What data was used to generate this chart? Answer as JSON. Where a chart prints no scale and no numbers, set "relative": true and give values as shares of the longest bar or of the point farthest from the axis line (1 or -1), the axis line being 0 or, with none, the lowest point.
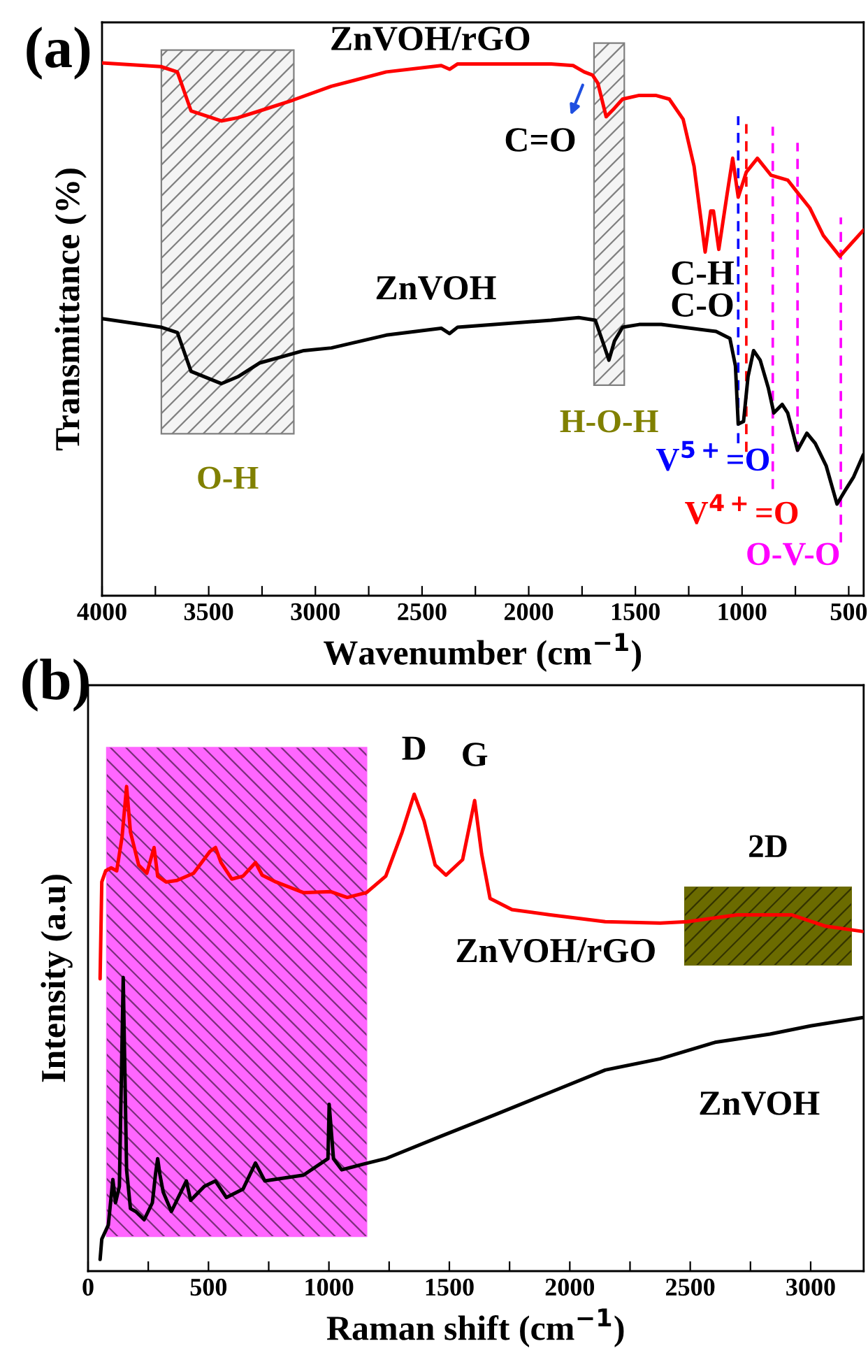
{
  "chart_data": [
    {
      "type": "line",
      "relative": true,
      "tick_labels": "x",
      "xlabel": "Wavenumber (cm$^{−1}$)",
      "ylabel": "Transmittance (%)",
      "xlim": [
        4000,
        430
      ],
      "xticks": [
        4000,
        {
          "value": 3750,
          "label": null
        },
        3500,
        {
          "value": 3250,
          "label": null
        },
        3000,
        {
          "value": 2750,
          "label": null
        },
        2500,
        {
          "value": 2250,
          "label": null
        },
        2000,
        {
          "value": 1750,
          "label": null
        },
        1500,
        {
          "value": 1250,
          "label": null
        },
        1000,
        {
          "value": 750,
          "label": null
        },
        500
      ],
      "series": [
        {
          "name": "ZnVOH/rGO",
          "color": "#ff0000",
          "x": [
            4000,
            3724,
            3647,
            3583,
            3441,
            3363,
            3260,
            3106,
            2925,
            2668,
            2410,
            2371,
            2333,
            1895,
            1792,
            1740,
            1701,
            1676,
            1637,
            1598,
            1560,
            1482,
            1405,
            1341,
            1276,
            1225,
            1173,
            1147,
            1134,
            1109,
            1070,
            1044,
            1018,
            980,
            928,
            864,
            786,
            735,
            683,
            619,
            542,
            490,
            431
          ],
          "values": [
            1.0,
            0.993,
            0.983,
            0.91,
            0.891,
            0.897,
            0.91,
            0.93,
            0.956,
            0.983,
            0.995,
            0.988,
            0.998,
            0.998,
            0.995,
            0.983,
            0.977,
            0.962,
            0.899,
            0.915,
            0.932,
            0.939,
            0.939,
            0.932,
            0.894,
            0.806,
            0.645,
            0.722,
            0.722,
            0.65,
            0.754,
            0.821,
            0.748,
            0.795,
            0.821,
            0.789,
            0.78,
            0.754,
            0.728,
            0.676,
            0.637,
            0.66,
            0.686
          ]
        },
        {
          "name": "ZnVOH",
          "color": "#000000",
          "x": [
            4000,
            3724,
            3647,
            3583,
            3441,
            3363,
            3260,
            3054,
            2925,
            2668,
            2410,
            2371,
            2333,
            1895,
            1766,
            1688,
            1650,
            1624,
            1598,
            1560,
            1482,
            1379,
            1122,
            1057,
            1031,
            1018,
            993,
            972,
            946,
            915,
            877,
            851,
            812,
            786,
            740,
            696,
            657,
            606,
            555,
            516,
            477,
            431
          ],
          "values": [
            0.52,
            0.504,
            0.494,
            0.421,
            0.398,
            0.411,
            0.437,
            0.46,
            0.465,
            0.489,
            0.502,
            0.492,
            0.504,
            0.517,
            0.522,
            0.517,
            0.473,
            0.442,
            0.478,
            0.504,
            0.509,
            0.509,
            0.496,
            0.483,
            0.431,
            0.322,
            0.327,
            0.411,
            0.46,
            0.442,
            0.39,
            0.343,
            0.359,
            0.343,
            0.273,
            0.305,
            0.286,
            0.244,
            0.172,
            0.198,
            0.223,
            0.265
          ]
        }
      ],
      "bands": [
        {
          "axis": "x",
          "from": 3722,
          "to": 3101,
          "label": "O-H",
          "color": "#7f7f7f"
        },
        {
          "axis": "x",
          "from": 1694,
          "to": 1552,
          "label": "H-O-H",
          "color": "#7f7f7f"
        }
      ],
      "ref_lines": [
        {
          "axis": "x",
          "value": 1018,
          "label": "V$^{5+}$=O",
          "color": "#0000ff",
          "line_style": "dashed"
        },
        {
          "axis": "x",
          "value": 980,
          "label": "V$^{4+}$=O",
          "color": "#ff0000",
          "line_style": "dashed"
        },
        {
          "axis": "x",
          "value": 856,
          "label": null,
          "color": "#ff00ff",
          "line_style": "dashed"
        },
        {
          "axis": "x",
          "value": 740,
          "label": null,
          "color": "#ff00ff",
          "line_style": "dashed"
        },
        {
          "axis": "x",
          "value": 537,
          "label": "O-V-O",
          "color": "#ff00ff",
          "line_style": "dashed"
        }
      ],
      "annotations": [
        "(a)",
        "C=O",
        "C-H",
        "C-O"
      ]
    },
    {
      "type": "line",
      "relative": true,
      "tick_labels": "x",
      "xlabel": "Raman shift (cm$^{−1}$)",
      "ylabel": "Intensity (a.u)",
      "xlim": [
        0,
        3220
      ],
      "xticks": [
        0,
        {
          "value": 250,
          "label": null
        },
        500,
        {
          "value": 750,
          "label": null
        },
        1000,
        {
          "value": 1250,
          "label": null
        },
        1500,
        {
          "value": 1750,
          "label": null
        },
        2000,
        {
          "value": 2250,
          "label": null
        },
        2500,
        {
          "value": 2750,
          "label": null
        },
        3000
      ],
      "series": [
        {
          "name": "ZnVOH/rGO",
          "color": "#ff0000",
          "x": [
            50,
            57,
            73,
            96,
            119,
            141,
            160,
            176,
            210,
            244,
            274,
            289,
            324,
            369,
            438,
            506,
            529,
            552,
            597,
            643,
            695,
            723,
            780,
            894,
            1008,
            1076,
            1156,
            1236,
            1304,
            1354,
            1395,
            1441,
            1486,
            1555,
            1605,
            1634,
            1669,
            1760,
            1919,
            2147,
            2375,
            2489,
            2694,
            2922,
            3059,
            3214
          ],
          "values": [
            0.603,
            0.803,
            0.826,
            0.832,
            0.826,
            0.895,
            1.0,
            0.906,
            0.838,
            0.821,
            0.874,
            0.815,
            0.803,
            0.806,
            0.821,
            0.866,
            0.874,
            0.843,
            0.809,
            0.815,
            0.843,
            0.817,
            0.803,
            0.781,
            0.783,
            0.771,
            0.781,
            0.815,
            0.906,
            0.984,
            0.929,
            0.838,
            0.817,
            0.849,
            0.971,
            0.861,
            0.769,
            0.746,
            0.735,
            0.721,
            0.718,
            0.721,
            0.735,
            0.735,
            0.712,
            0.701
          ]
        },
        {
          "name": "ZnVOH",
          "color": "#000000",
          "x": [
            50,
            57,
            84,
            103,
            114,
            130,
            146,
            160,
            176,
            198,
            233,
            267,
            280,
            289,
            298,
            312,
            346,
            408,
            426,
            483,
            529,
            574,
            643,
            695,
            734,
            894,
            996,
            1001,
            1019,
            1053,
            1144,
            1235,
            1463,
            1691,
            1919,
            2147,
            2375,
            2603,
            2831,
            3000,
            3214
          ],
          "values": [
            0.024,
            0.066,
            0.095,
            0.189,
            0.141,
            0.175,
            0.606,
            0.209,
            0.129,
            0.123,
            0.106,
            0.141,
            0.2,
            0.232,
            0.2,
            0.163,
            0.123,
            0.186,
            0.146,
            0.175,
            0.186,
            0.152,
            0.169,
            0.223,
            0.186,
            0.198,
            0.232,
            0.344,
            0.232,
            0.209,
            0.221,
            0.232,
            0.278,
            0.323,
            0.369,
            0.415,
            0.438,
            0.472,
            0.489,
            0.506,
            0.523
          ]
        }
      ],
      "bands": [
        {
          "axis": "x",
          "from": 78,
          "to": 1156,
          "label": null,
          "color": "#ff66ff"
        },
        {
          "axis": "x",
          "from": 2478,
          "to": 3168,
          "label": "2D",
          "color": "#6b6b00"
        }
      ],
      "annotations": [
        "(b)",
        {
          "text": "D",
          "x": 1354,
          "y": 0.984
        },
        {
          "text": "G",
          "x": 1605,
          "y": 0.971
        }
      ]
    }
  ]
}
